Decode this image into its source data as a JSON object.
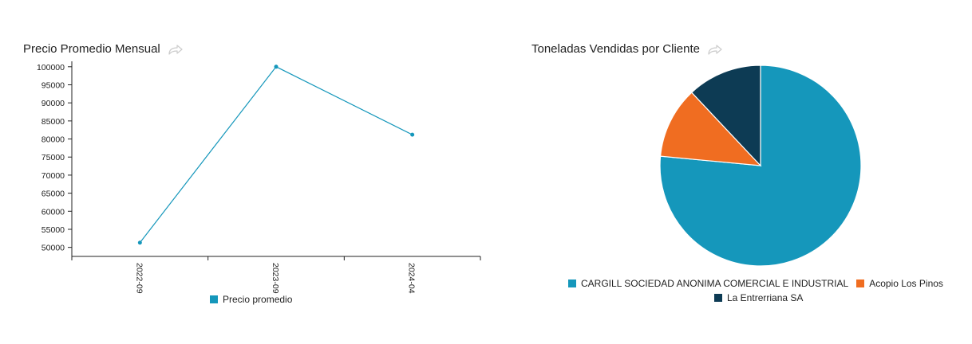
{
  "chart_data": [
    {
      "type": "line",
      "title": "Precio Promedio Mensual",
      "categories": [
        "2022-09",
        "2023-09",
        "2024-04"
      ],
      "series": [
        {
          "name": "Precio promedio",
          "values": [
            51300,
            100000,
            81200
          ],
          "color": "#1597bb"
        }
      ],
      "ylim": [
        47500,
        101500
      ],
      "yticks": [
        50000,
        55000,
        60000,
        65000,
        70000,
        75000,
        80000,
        85000,
        90000,
        95000,
        100000
      ],
      "grid": false,
      "legend": "bottom"
    },
    {
      "type": "pie",
      "title": "Toneladas Vendidas por Cliente",
      "slices": [
        {
          "label": "CARGILL SOCIEDAD ANONIMA COMERCIAL E INDUSTRIAL",
          "value": 76.5,
          "color": "#1597bb"
        },
        {
          "label": "Acopio Los Pinos",
          "value": 11.5,
          "color": "#f06d21"
        },
        {
          "label": "La Entrerriana SA",
          "value": 12.0,
          "color": "#0d3b54"
        }
      ],
      "legend": "bottom"
    }
  ],
  "icons": {
    "share": "share-arrow-icon"
  },
  "colors": {
    "axis": "#222222",
    "icon": "#cccccc"
  }
}
